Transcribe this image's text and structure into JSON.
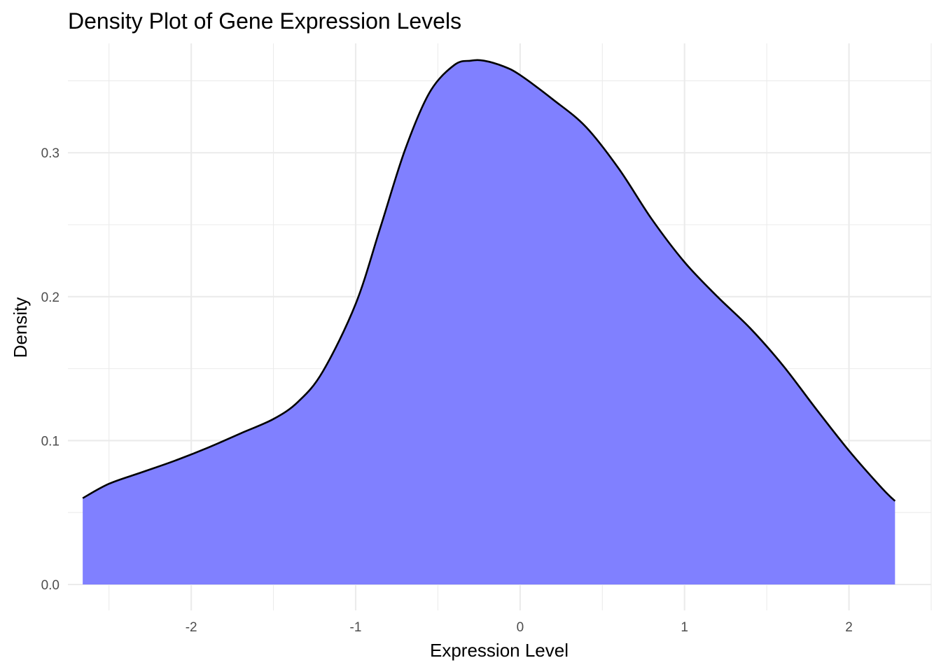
{
  "chart_data": {
    "type": "area",
    "title": "Density Plot of Gene Expression Levels",
    "xlabel": "Expression Level",
    "ylabel": "Density",
    "xlim": [
      -2.75,
      2.5
    ],
    "ylim": [
      -0.018,
      0.376
    ],
    "x_ticks": [
      -2,
      -1,
      0,
      1,
      2
    ],
    "x_tick_labels": [
      "-2",
      "-1",
      "0",
      "1",
      "2"
    ],
    "x_minor_ticks": [
      -2.5,
      -1.5,
      -0.5,
      0.5,
      1.5,
      2.5
    ],
    "y_ticks": [
      0.0,
      0.1,
      0.2,
      0.3
    ],
    "y_tick_labels": [
      "0.0",
      "0.1",
      "0.2",
      "0.3"
    ],
    "y_minor_ticks": [
      0.05,
      0.15,
      0.25,
      0.35
    ],
    "grid": true,
    "fill_color": "#8080ff",
    "line_color": "#000000",
    "series": [
      {
        "x": [
          -2.66,
          -2.5,
          -2.3,
          -2.1,
          -1.9,
          -1.7,
          -1.5,
          -1.35,
          -1.2,
          -1.0,
          -0.85,
          -0.7,
          -0.55,
          -0.4,
          -0.3,
          -0.22,
          -0.1,
          0.0,
          0.2,
          0.4,
          0.6,
          0.8,
          1.0,
          1.2,
          1.4,
          1.6,
          1.8,
          2.0,
          2.2,
          2.28
        ],
        "y": [
          0.06,
          0.07,
          0.078,
          0.086,
          0.095,
          0.105,
          0.115,
          0.127,
          0.148,
          0.195,
          0.248,
          0.302,
          0.342,
          0.361,
          0.364,
          0.364,
          0.36,
          0.354,
          0.337,
          0.318,
          0.289,
          0.254,
          0.224,
          0.2,
          0.178,
          0.152,
          0.122,
          0.093,
          0.067,
          0.058
        ]
      }
    ]
  }
}
